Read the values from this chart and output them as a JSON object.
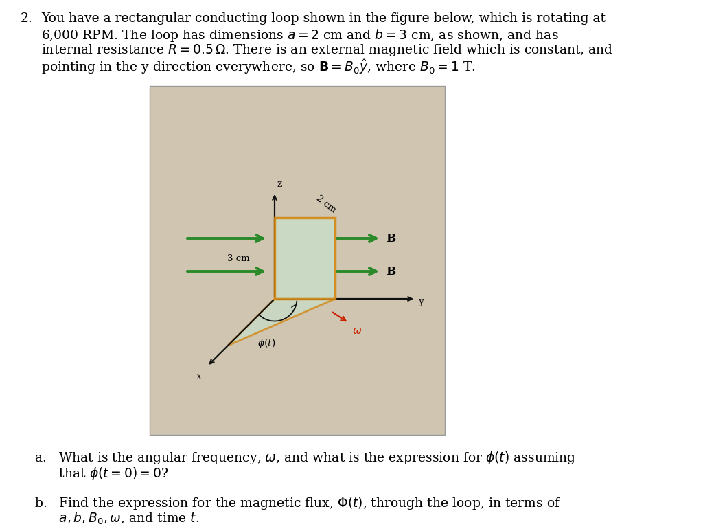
{
  "bg_color": "#ffffff",
  "problem_number": "2.",
  "main_text_line1": "You have a rectangular conducting loop shown in the figure below, which is rotating at",
  "main_text_line2": "6,000 RPM. The loop has dimensions $a = 2$ cm and $b = 3$ cm, as shown, and has",
  "main_text_line3": "internal resistance $R = 0.5\\,\\Omega$. There is an external magnetic field which is constant, and",
  "main_text_line4": "pointing in the y direction everywhere, so $\\mathbf{B} = B_0\\hat{y}$, where $B_0 = 1$ T.",
  "font_size_main": 13.5,
  "image_bg": "#cfc5b0",
  "rect_fill": "#c8ddc8",
  "rect_edge": "#d4830a",
  "triangle_fill": "#c8ddc8",
  "arrow_green": "#2a8a2a",
  "axis_color": "#111111",
  "omega_color": "#cc2200"
}
